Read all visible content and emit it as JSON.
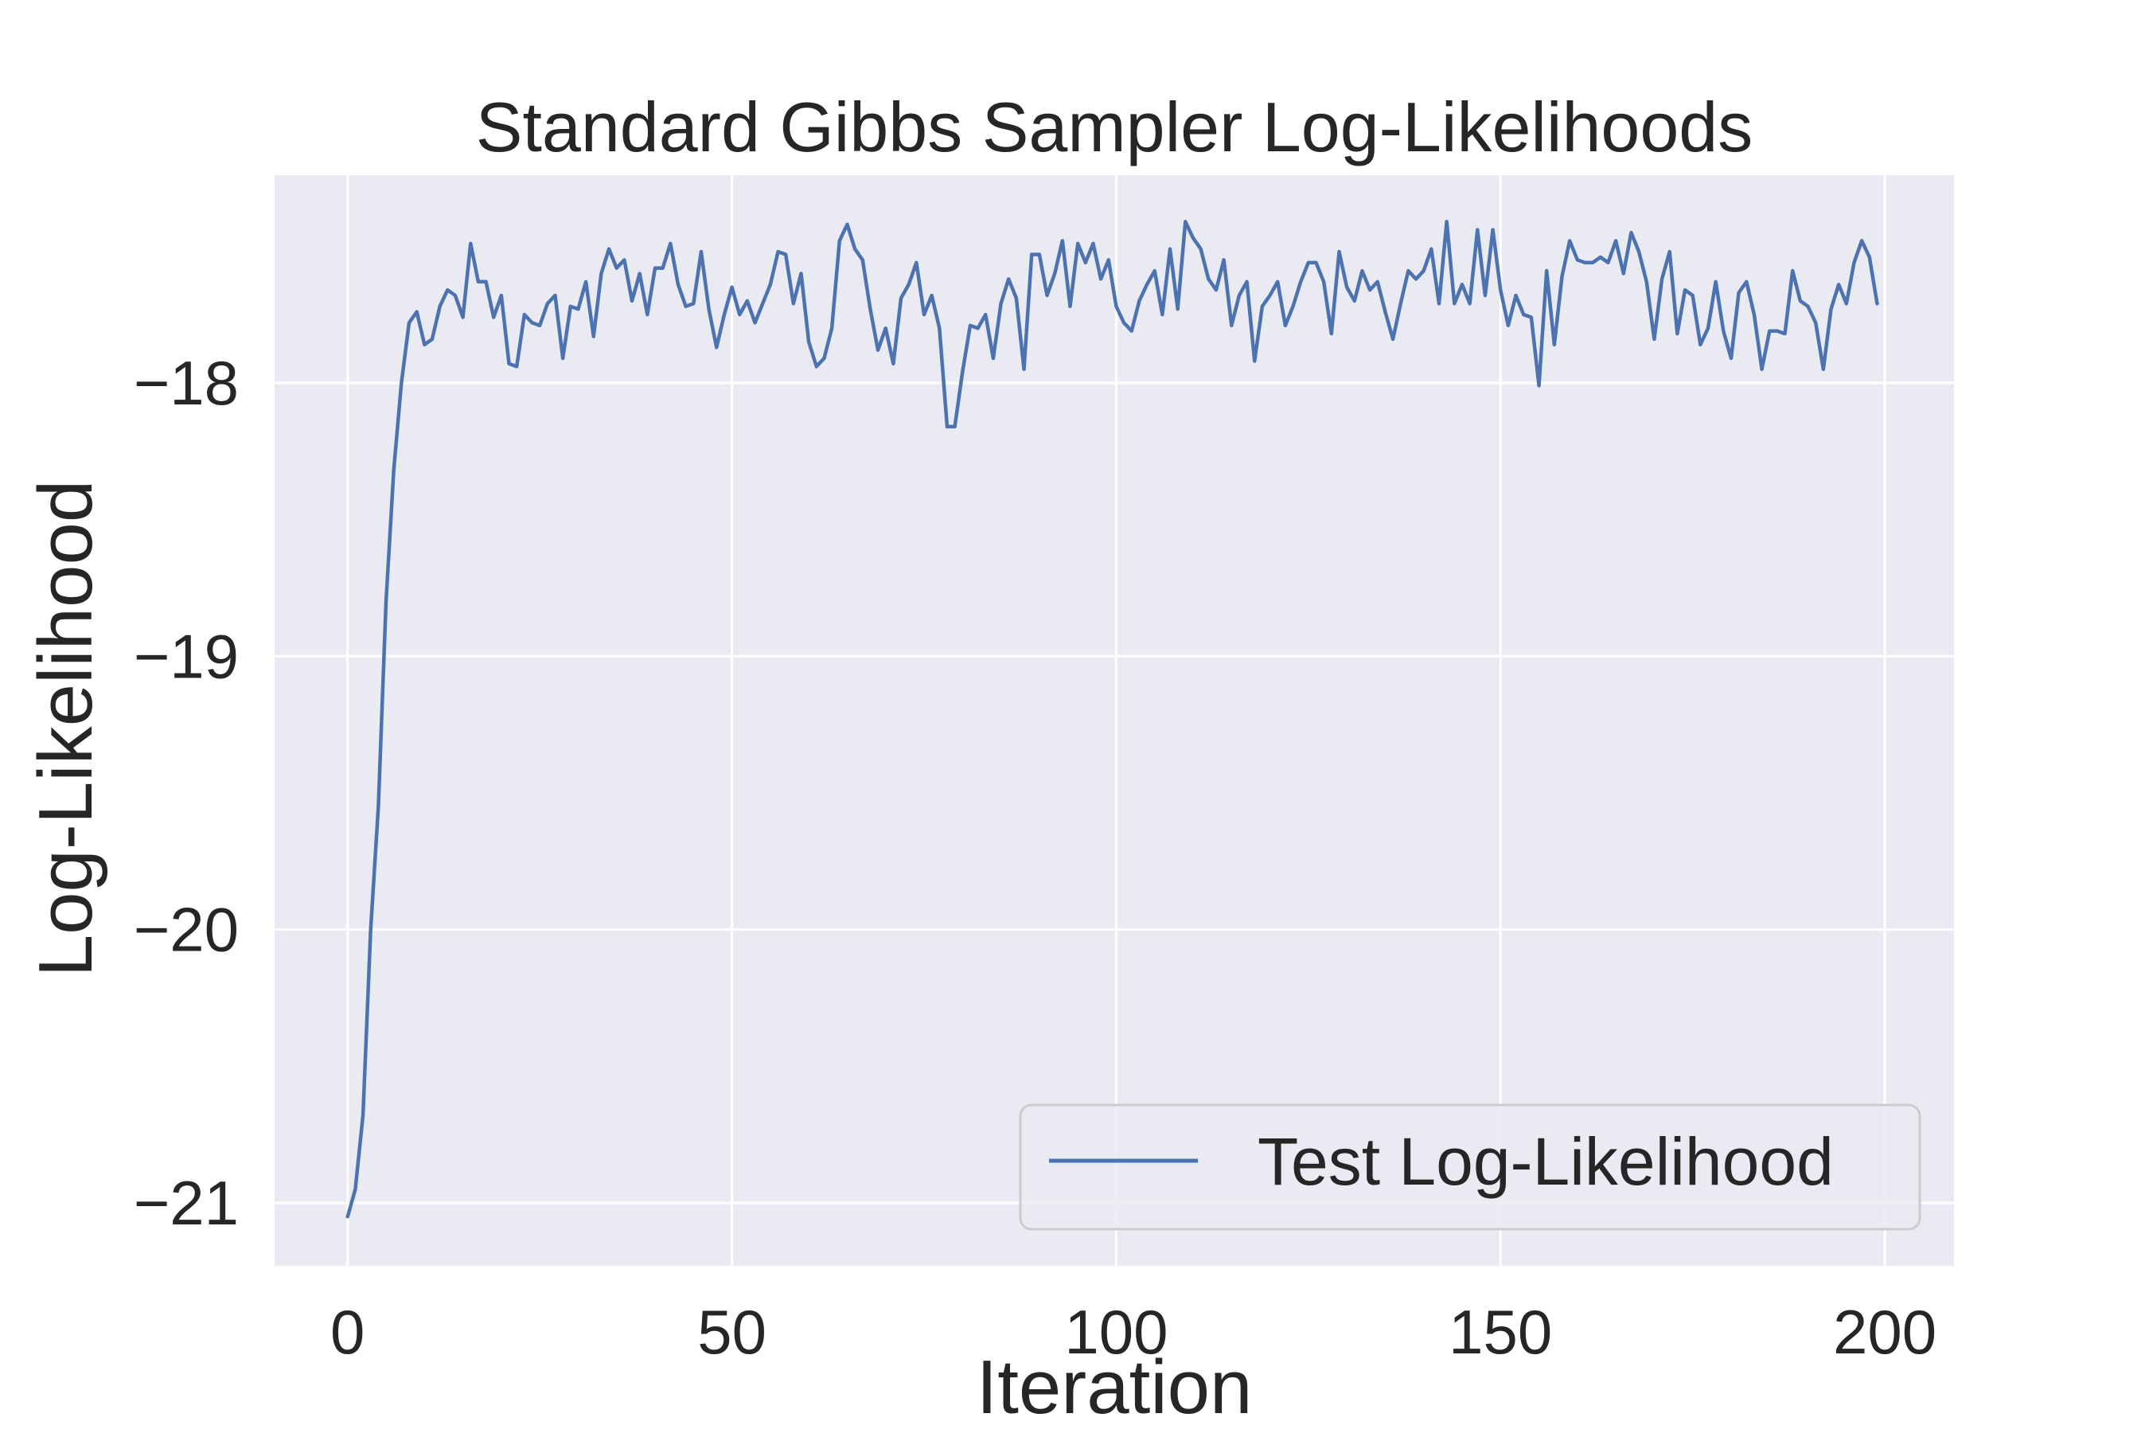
{
  "chart_data": {
    "type": "line",
    "title": "Standard Gibbs Sampler Log-Likelihoods",
    "xlabel": "Iteration",
    "ylabel": "Log-Likelihood",
    "xlim": [
      -9.5,
      209
    ],
    "ylim": [
      -21.23,
      -17.24
    ],
    "xticks": [
      0,
      50,
      100,
      150,
      200
    ],
    "yticks": [
      -21,
      -20,
      -19,
      -18
    ],
    "xtick_labels": [
      "0",
      "50",
      "100",
      "150",
      "200"
    ],
    "ytick_labels": [
      "−21",
      "−20",
      "−19",
      "−18"
    ],
    "grid": true,
    "legend_position": "lower-right",
    "colors": {
      "background": "#eaeaf2",
      "line": "#4c72b0",
      "grid": "#ffffff"
    },
    "series": [
      {
        "name": "Test Log-Likelihood",
        "x": [
          0,
          1,
          2,
          3,
          4,
          5,
          6,
          7,
          8,
          9,
          10,
          11,
          12,
          13,
          14,
          15,
          16,
          17,
          18,
          19,
          20,
          21,
          22,
          23,
          24,
          25,
          26,
          27,
          28,
          29,
          30,
          31,
          32,
          33,
          34,
          35,
          36,
          37,
          38,
          39,
          40,
          41,
          42,
          43,
          44,
          45,
          46,
          47,
          48,
          49,
          50,
          51,
          52,
          53,
          54,
          55,
          56,
          57,
          58,
          59,
          60,
          61,
          62,
          63,
          64,
          65,
          66,
          67,
          68,
          69,
          70,
          71,
          72,
          73,
          74,
          75,
          76,
          77,
          78,
          79,
          80,
          81,
          82,
          83,
          84,
          85,
          86,
          87,
          88,
          89,
          90,
          91,
          92,
          93,
          94,
          95,
          96,
          97,
          98,
          99,
          100,
          101,
          102,
          103,
          104,
          105,
          106,
          107,
          108,
          109,
          110,
          111,
          112,
          113,
          114,
          115,
          116,
          117,
          118,
          119,
          120,
          121,
          122,
          123,
          124,
          125,
          126,
          127,
          128,
          129,
          130,
          131,
          132,
          133,
          134,
          135,
          136,
          137,
          138,
          139,
          140,
          141,
          142,
          143,
          144,
          145,
          146,
          147,
          148,
          149,
          150,
          151,
          152,
          153,
          154,
          155,
          156,
          157,
          158,
          159,
          160,
          161,
          162,
          163,
          164,
          165,
          166,
          167,
          168,
          169,
          170,
          171,
          172,
          173,
          174,
          175,
          176,
          177,
          178,
          179,
          180,
          181,
          182,
          183,
          184,
          185,
          186,
          187,
          188,
          189,
          190,
          191,
          192,
          193,
          194,
          195,
          196,
          197,
          198,
          199
        ],
        "y": [
          -21.05,
          -20.95,
          -20.68,
          -20.0,
          -19.55,
          -18.8,
          -18.32,
          -18.0,
          -17.78,
          -17.74,
          -17.86,
          -17.84,
          -17.72,
          -17.66,
          -17.68,
          -17.76,
          -17.49,
          -17.63,
          -17.63,
          -17.76,
          -17.68,
          -17.93,
          -17.94,
          -17.75,
          -17.78,
          -17.79,
          -17.71,
          -17.68,
          -17.91,
          -17.72,
          -17.73,
          -17.63,
          -17.83,
          -17.6,
          -17.51,
          -17.58,
          -17.55,
          -17.7,
          -17.6,
          -17.75,
          -17.58,
          -17.58,
          -17.49,
          -17.64,
          -17.72,
          -17.71,
          -17.52,
          -17.73,
          -17.87,
          -17.75,
          -17.65,
          -17.75,
          -17.7,
          -17.78,
          -17.71,
          -17.64,
          -17.52,
          -17.53,
          -17.71,
          -17.6,
          -17.85,
          -17.94,
          -17.91,
          -17.8,
          -17.48,
          -17.42,
          -17.51,
          -17.55,
          -17.73,
          -17.88,
          -17.8,
          -17.93,
          -17.69,
          -17.64,
          -17.56,
          -17.75,
          -17.68,
          -17.8,
          -18.16,
          -18.16,
          -17.96,
          -17.79,
          -17.8,
          -17.75,
          -17.91,
          -17.71,
          -17.62,
          -17.69,
          -17.95,
          -17.53,
          -17.53,
          -17.68,
          -17.6,
          -17.48,
          -17.72,
          -17.49,
          -17.56,
          -17.49,
          -17.62,
          -17.55,
          -17.72,
          -17.78,
          -17.81,
          -17.7,
          -17.64,
          -17.59,
          -17.75,
          -17.51,
          -17.73,
          -17.41,
          -17.47,
          -17.51,
          -17.62,
          -17.66,
          -17.55,
          -17.79,
          -17.68,
          -17.63,
          -17.92,
          -17.72,
          -17.68,
          -17.63,
          -17.79,
          -17.72,
          -17.63,
          -17.56,
          -17.56,
          -17.63,
          -17.82,
          -17.52,
          -17.65,
          -17.7,
          -17.59,
          -17.66,
          -17.63,
          -17.74,
          -17.84,
          -17.71,
          -17.59,
          -17.62,
          -17.59,
          -17.51,
          -17.71,
          -17.41,
          -17.71,
          -17.64,
          -17.71,
          -17.44,
          -17.68,
          -17.44,
          -17.66,
          -17.79,
          -17.68,
          -17.75,
          -17.76,
          -18.01,
          -17.59,
          -17.86,
          -17.61,
          -17.48,
          -17.55,
          -17.56,
          -17.56,
          -17.54,
          -17.56,
          -17.48,
          -17.6,
          -17.45,
          -17.52,
          -17.63,
          -17.84,
          -17.62,
          -17.52,
          -17.82,
          -17.66,
          -17.68,
          -17.86,
          -17.8,
          -17.63,
          -17.81,
          -17.91,
          -17.67,
          -17.63,
          -17.75,
          -17.95,
          -17.81,
          -17.81,
          -17.82,
          -17.59,
          -17.7,
          -17.72,
          -17.78,
          -17.95,
          -17.73,
          -17.64,
          -17.71,
          -17.56,
          -17.48,
          -17.54,
          -17.71
        ]
      }
    ]
  }
}
